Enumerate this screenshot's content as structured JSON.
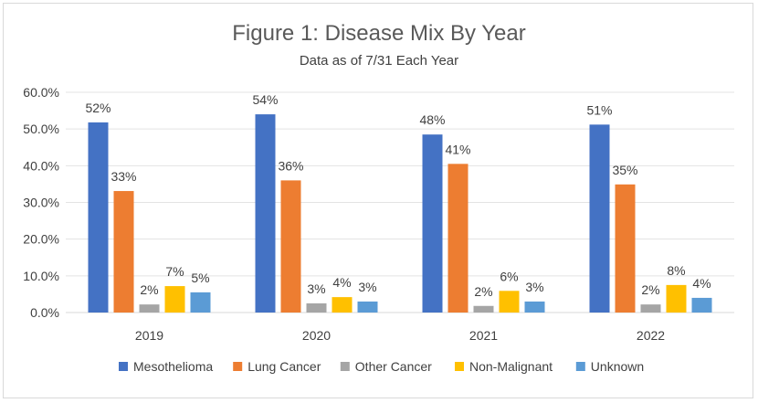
{
  "chart_data": {
    "type": "bar",
    "title": "Figure 1: Disease Mix By Year",
    "subtitle": "Data as of 7/31 Each Year",
    "categories": [
      "2019",
      "2020",
      "2021",
      "2022"
    ],
    "ylim": [
      0,
      60
    ],
    "yticks": [
      "0.0%",
      "10.0%",
      "20.0%",
      "30.0%",
      "40.0%",
      "50.0%",
      "60.0%"
    ],
    "grid": true,
    "legend_position": "bottom",
    "series": [
      {
        "name": "Mesothelioma",
        "color": "#4472C4",
        "values": [
          51.8,
          54.0,
          48.5,
          51.2
        ],
        "labels": [
          "52%",
          "54%",
          "48%",
          "51%"
        ]
      },
      {
        "name": "Lung Cancer",
        "color": "#ED7D31",
        "values": [
          33.1,
          36.0,
          40.5,
          34.9
        ],
        "labels": [
          "33%",
          "36%",
          "41%",
          "35%"
        ]
      },
      {
        "name": "Other Cancer",
        "color": "#A5A5A5",
        "values": [
          2.2,
          2.5,
          1.8,
          2.2
        ],
        "labels": [
          "2%",
          "3%",
          "2%",
          "2%"
        ]
      },
      {
        "name": "Non-Malignant",
        "color": "#FFC000",
        "values": [
          7.2,
          4.2,
          5.9,
          7.5
        ],
        "labels": [
          "7%",
          "4%",
          "6%",
          "8%"
        ]
      },
      {
        "name": "Unknown",
        "color": "#5B9BD5",
        "values": [
          5.5,
          3.0,
          3.0,
          4.0
        ],
        "labels": [
          "5%",
          "3%",
          "3%",
          "4%"
        ]
      }
    ]
  }
}
